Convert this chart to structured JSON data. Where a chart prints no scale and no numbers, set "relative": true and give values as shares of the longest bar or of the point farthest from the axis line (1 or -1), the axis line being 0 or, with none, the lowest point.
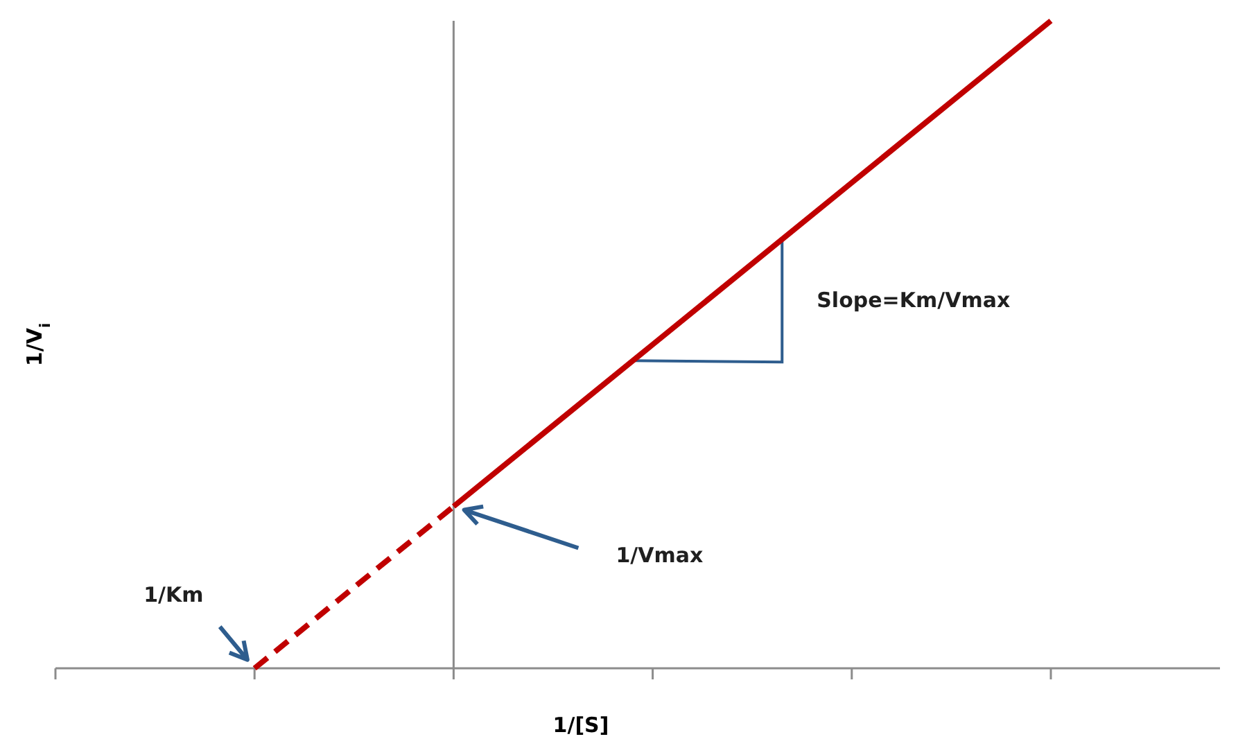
{
  "chart_data": {
    "type": "line",
    "xlabel": "1/[S]",
    "ylabel": "1/V$_{i}$",
    "relative": true,
    "categories": [
      null,
      null,
      null,
      null,
      null,
      null
    ],
    "series": [
      {
        "color": "#c00000",
        "values": [
          null,
          0,
          0.25,
          null,
          null,
          null
        ],
        "line_style": "dashed"
      },
      {
        "color": "#c00000",
        "values": [
          null,
          null,
          0.25,
          0.5,
          0.75,
          1
        ],
        "line_style": "solid"
      }
    ],
    "annotations": [
      "1/Km",
      "1/Vmax",
      "Slope=Km/Vmax"
    ]
  }
}
